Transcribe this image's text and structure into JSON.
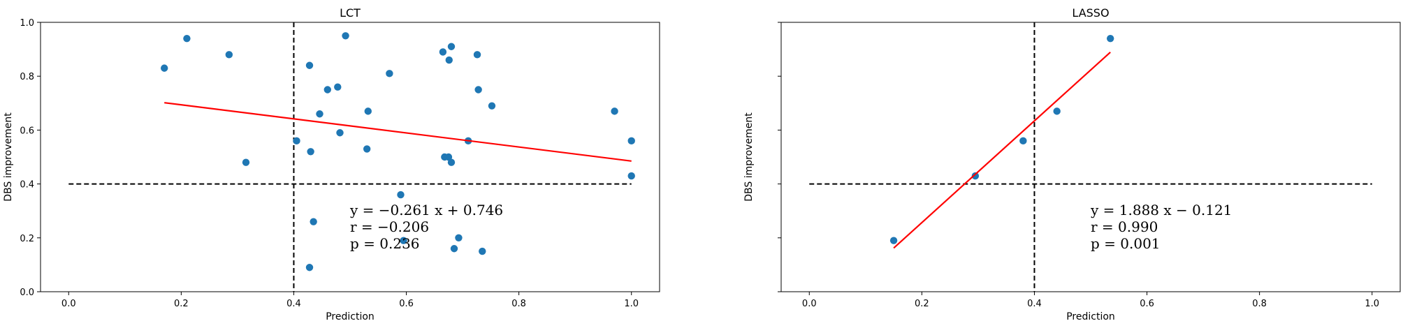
{
  "chart_data": [
    {
      "type": "scatter",
      "title": "LCT",
      "xlabel": "Prediction",
      "ylabel": "DBS improvement",
      "xlim": [
        -0.05,
        1.05
      ],
      "ylim": [
        0.0,
        1.0
      ],
      "xticks": [
        "0.0",
        "0.2",
        "0.4",
        "0.6",
        "0.8",
        "1.0"
      ],
      "yticks": [
        "0.0",
        "0.2",
        "0.4",
        "0.6",
        "0.8",
        "1.0"
      ],
      "threshold_x": 0.4,
      "threshold_y": 0.4,
      "point_color": "#1f77b4",
      "fit_color": "#ff0000",
      "fit": {
        "slope": -0.261,
        "intercept": 0.746,
        "x_range": [
          0.17,
          1.0
        ]
      },
      "annotation": [
        "y = −0.261 x + 0.746",
        "r = −0.206",
        "p = 0.236"
      ],
      "points": [
        [
          0.17,
          0.83
        ],
        [
          0.21,
          0.94
        ],
        [
          0.285,
          0.88
        ],
        [
          0.315,
          0.48
        ],
        [
          0.405,
          0.56
        ],
        [
          0.428,
          0.84
        ],
        [
          0.43,
          0.52
        ],
        [
          0.428,
          0.09
        ],
        [
          0.435,
          0.26
        ],
        [
          0.446,
          0.66
        ],
        [
          0.46,
          0.75
        ],
        [
          0.478,
          0.76
        ],
        [
          0.482,
          0.59
        ],
        [
          0.492,
          0.95
        ],
        [
          0.53,
          0.53
        ],
        [
          0.532,
          0.67
        ],
        [
          0.57,
          0.81
        ],
        [
          0.59,
          0.36
        ],
        [
          0.595,
          0.19
        ],
        [
          0.665,
          0.89
        ],
        [
          0.668,
          0.5
        ],
        [
          0.675,
          0.5
        ],
        [
          0.676,
          0.86
        ],
        [
          0.68,
          0.48
        ],
        [
          0.68,
          0.91
        ],
        [
          0.685,
          0.16
        ],
        [
          0.693,
          0.2
        ],
        [
          0.71,
          0.56
        ],
        [
          0.726,
          0.88
        ],
        [
          0.728,
          0.75
        ],
        [
          0.735,
          0.15
        ],
        [
          0.752,
          0.69
        ],
        [
          0.97,
          0.67
        ],
        [
          1.0,
          0.56
        ],
        [
          1.0,
          0.43
        ]
      ]
    },
    {
      "type": "scatter",
      "title": "LASSO",
      "xlabel": "Prediction",
      "ylabel": "DBS improvement",
      "xlim": [
        -0.05,
        1.05
      ],
      "ylim": [
        0.0,
        1.0
      ],
      "xticks": [
        "0.0",
        "0.2",
        "0.4",
        "0.6",
        "0.8",
        "1.0"
      ],
      "yticks": [
        "",
        "",
        "",
        "",
        "",
        ""
      ],
      "threshold_x": 0.4,
      "threshold_y": 0.4,
      "point_color": "#1f77b4",
      "fit_color": "#ff0000",
      "fit": {
        "slope": 1.888,
        "intercept": -0.121,
        "x_range": [
          0.15,
          0.535
        ]
      },
      "annotation": [
        "y = 1.888 x − 0.121",
        "r = 0.990",
        "p = 0.001"
      ],
      "points": [
        [
          0.15,
          0.19
        ],
        [
          0.295,
          0.43
        ],
        [
          0.38,
          0.56
        ],
        [
          0.44,
          0.67
        ],
        [
          0.535,
          0.94
        ]
      ]
    }
  ]
}
